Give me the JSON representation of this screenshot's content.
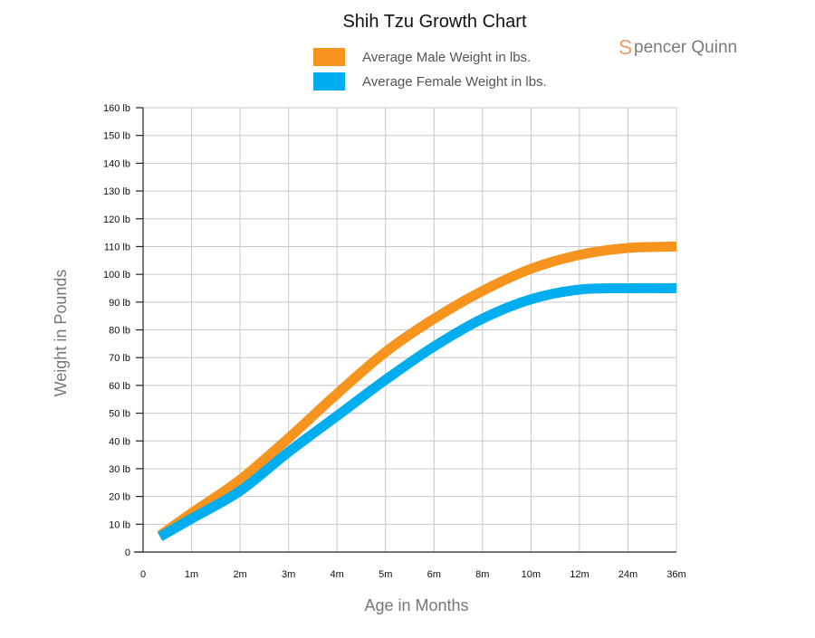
{
  "chart_data": {
    "type": "line",
    "title": "Shih Tzu Growth Chart",
    "xlabel": "Age in Months",
    "ylabel": "Weight in Pounds",
    "categories": [
      "0",
      "1m",
      "2m",
      "3m",
      "4m",
      "5m",
      "6m",
      "8m",
      "10m",
      "12m",
      "24m",
      "36m"
    ],
    "ylim": [
      0,
      160
    ],
    "yticks": [
      "0",
      "10 lb",
      "20 lb",
      "30 lb",
      "40 lb",
      "50 lb",
      "60 lb",
      "70 lb",
      "80 lb",
      "90 lb",
      "100 lb",
      "110 lb",
      "120 lb",
      "130 lb",
      "140 lb",
      "150 lb",
      "160 lb"
    ],
    "grid": true,
    "legend_position": "top-center",
    "series": [
      {
        "name": "Average Male Weight in lbs.",
        "color": "#f7941d",
        "points": [
          [
            0.35,
            6
          ],
          [
            1,
            14
          ],
          [
            2,
            26
          ],
          [
            3,
            41
          ],
          [
            4,
            57
          ],
          [
            5,
            72
          ],
          [
            6,
            84
          ],
          [
            7,
            94
          ],
          [
            8,
            102
          ],
          [
            9,
            107
          ],
          [
            10,
            109.5
          ],
          [
            11,
            110
          ]
        ]
      },
      {
        "name": "Average Female Weight in lbs.",
        "color": "#00aeef",
        "points": [
          [
            0.35,
            5.5
          ],
          [
            1,
            12
          ],
          [
            2,
            22
          ],
          [
            3,
            36
          ],
          [
            4,
            49
          ],
          [
            5,
            62
          ],
          [
            6,
            74
          ],
          [
            7,
            84
          ],
          [
            8,
            91
          ],
          [
            9,
            94.5
          ],
          [
            10,
            95
          ],
          [
            11,
            95
          ]
        ]
      }
    ]
  },
  "brand": {
    "initial": "S",
    "rest": "pencer Quinn"
  }
}
